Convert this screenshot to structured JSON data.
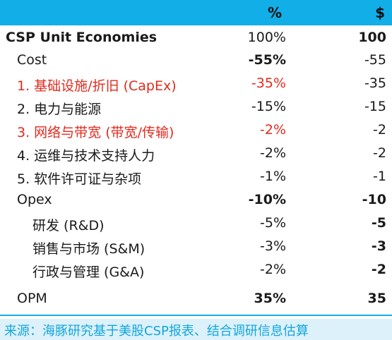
{
  "header": {
    "pct_label": "%",
    "val_label": "$"
  },
  "rows": [
    {
      "label": "CSP Unit Economies",
      "pct": "100%",
      "val": "100"
    },
    {
      "label": "Cost",
      "pct": "-55%",
      "val": "-55"
    },
    {
      "label": "1. 基础设施/折旧 (CapEx)",
      "pct": "-35%",
      "val": "-35"
    },
    {
      "label": "2. 电力与能源",
      "pct": "-15%",
      "val": "-15"
    },
    {
      "label": "3. 网络与带宽 (带宽/传输)",
      "pct": "-2%",
      "val": "-2"
    },
    {
      "label": "4. 运维与技术支持人力",
      "pct": "-2%",
      "val": "-2"
    },
    {
      "label": "5. 软件许可证与杂项",
      "pct": "-1%",
      "val": "-1"
    },
    {
      "label": "Opex",
      "pct": "-10%",
      "val": "-10"
    },
    {
      "label": "研发 (R&D)",
      "pct": "-5%",
      "val": "-5"
    },
    {
      "label": "销售与市场 (S&M)",
      "pct": "-3%",
      "val": "-3"
    },
    {
      "label": "行政与管理 (G&A)",
      "pct": "-2%",
      "val": "-2"
    },
    {
      "label": "OPM",
      "pct": "35%",
      "val": "35"
    }
  ],
  "footer": {
    "source": "来源：海豚研究基于美股CSP报表、结合调研信息估算"
  },
  "colors": {
    "header_bg": "#12aee8",
    "highlight_red": "#e32a1d",
    "footer_bg": "#ddf1fb",
    "footer_text": "#12a6dc"
  }
}
